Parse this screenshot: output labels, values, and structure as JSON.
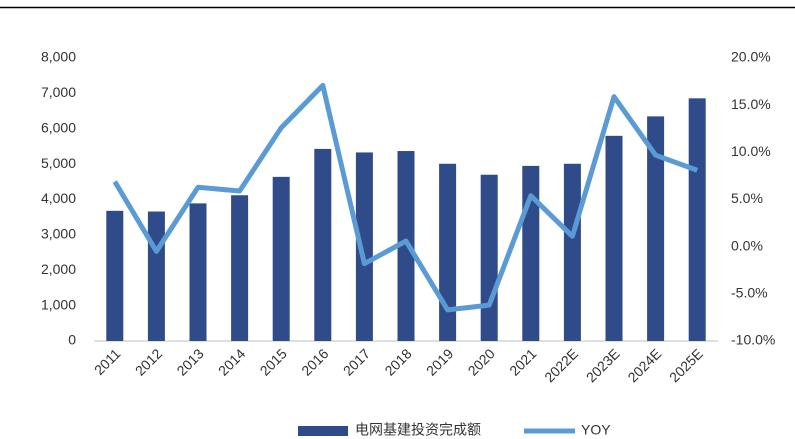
{
  "chart_data": {
    "type": "bar_line",
    "categories": [
      "2011",
      "2012",
      "2013",
      "2014",
      "2015",
      "2016",
      "2017",
      "2018",
      "2019",
      "2020",
      "2021",
      "2022E",
      "2023E",
      "2024E",
      "2025E"
    ],
    "series": [
      {
        "name": "电网基建投资完成额",
        "type": "bar",
        "color": "#2f4b8a",
        "values": [
          3680,
          3660,
          3890,
          4120,
          4640,
          5430,
          5330,
          5370,
          5010,
          4700,
          4950,
          5010,
          5800,
          6350,
          6860
        ]
      },
      {
        "name": "YOY",
        "type": "line",
        "axis": "y2",
        "color": "#5b9bd5",
        "values": [
          6.9,
          -0.5,
          6.3,
          5.9,
          12.6,
          17.1,
          -1.8,
          0.6,
          -6.7,
          -6.2,
          5.4,
          1.1,
          15.9,
          9.7,
          8.1
        ]
      }
    ],
    "ylim": [
      0,
      8000
    ],
    "yticks": [
      0,
      {
        "value": 1000,
        "label": "1,000"
      },
      {
        "value": 2000,
        "label": "2,000"
      },
      {
        "value": 3000,
        "label": "3,000"
      },
      {
        "value": 4000,
        "label": "4,000"
      },
      {
        "value": 5000,
        "label": "5,000"
      },
      {
        "value": 6000,
        "label": "6,000"
      },
      {
        "value": 7000,
        "label": "7,000"
      },
      {
        "value": 8000,
        "label": "8,000"
      }
    ],
    "y2lim": [
      -10,
      20
    ],
    "y2ticks": [
      {
        "value": -10,
        "label": "-10.0%"
      },
      {
        "value": -5,
        "label": "-5.0%"
      },
      {
        "value": 0,
        "label": "0.0%"
      },
      {
        "value": 5,
        "label": "5.0%"
      },
      {
        "value": 10,
        "label": "10.0%"
      },
      {
        "value": 15,
        "label": "15.0%"
      },
      {
        "value": 20,
        "label": "20.0%"
      }
    ],
    "legend": "bottom"
  }
}
